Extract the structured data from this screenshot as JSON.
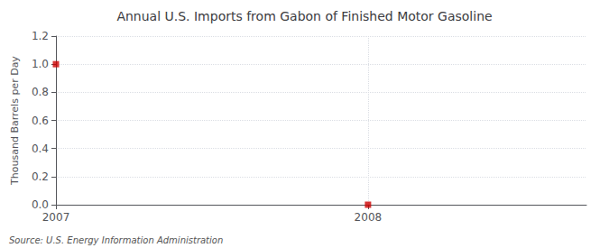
{
  "chart_data": {
    "type": "scatter",
    "title": "Annual U.S. Imports from Gabon of Finished Motor Gasoline",
    "ylabel": "Thousand Barrels per Day",
    "annotations": [
      "Source: U.S. Energy Information Administration"
    ],
    "x": [
      2007,
      2008
    ],
    "values": [
      1.0,
      0.0
    ],
    "color": "#cc0000",
    "marker": "square",
    "xlim": [
      2007,
      2008.7
    ],
    "xticks": [
      2007,
      2008
    ],
    "ylim": [
      0.0,
      1.2
    ],
    "yticks": [
      {
        "value": 0,
        "label": "0.0"
      },
      0.2,
      0.4,
      0.6,
      0.8,
      {
        "value": 1,
        "label": "1.0"
      },
      1.2
    ],
    "grid": true
  }
}
